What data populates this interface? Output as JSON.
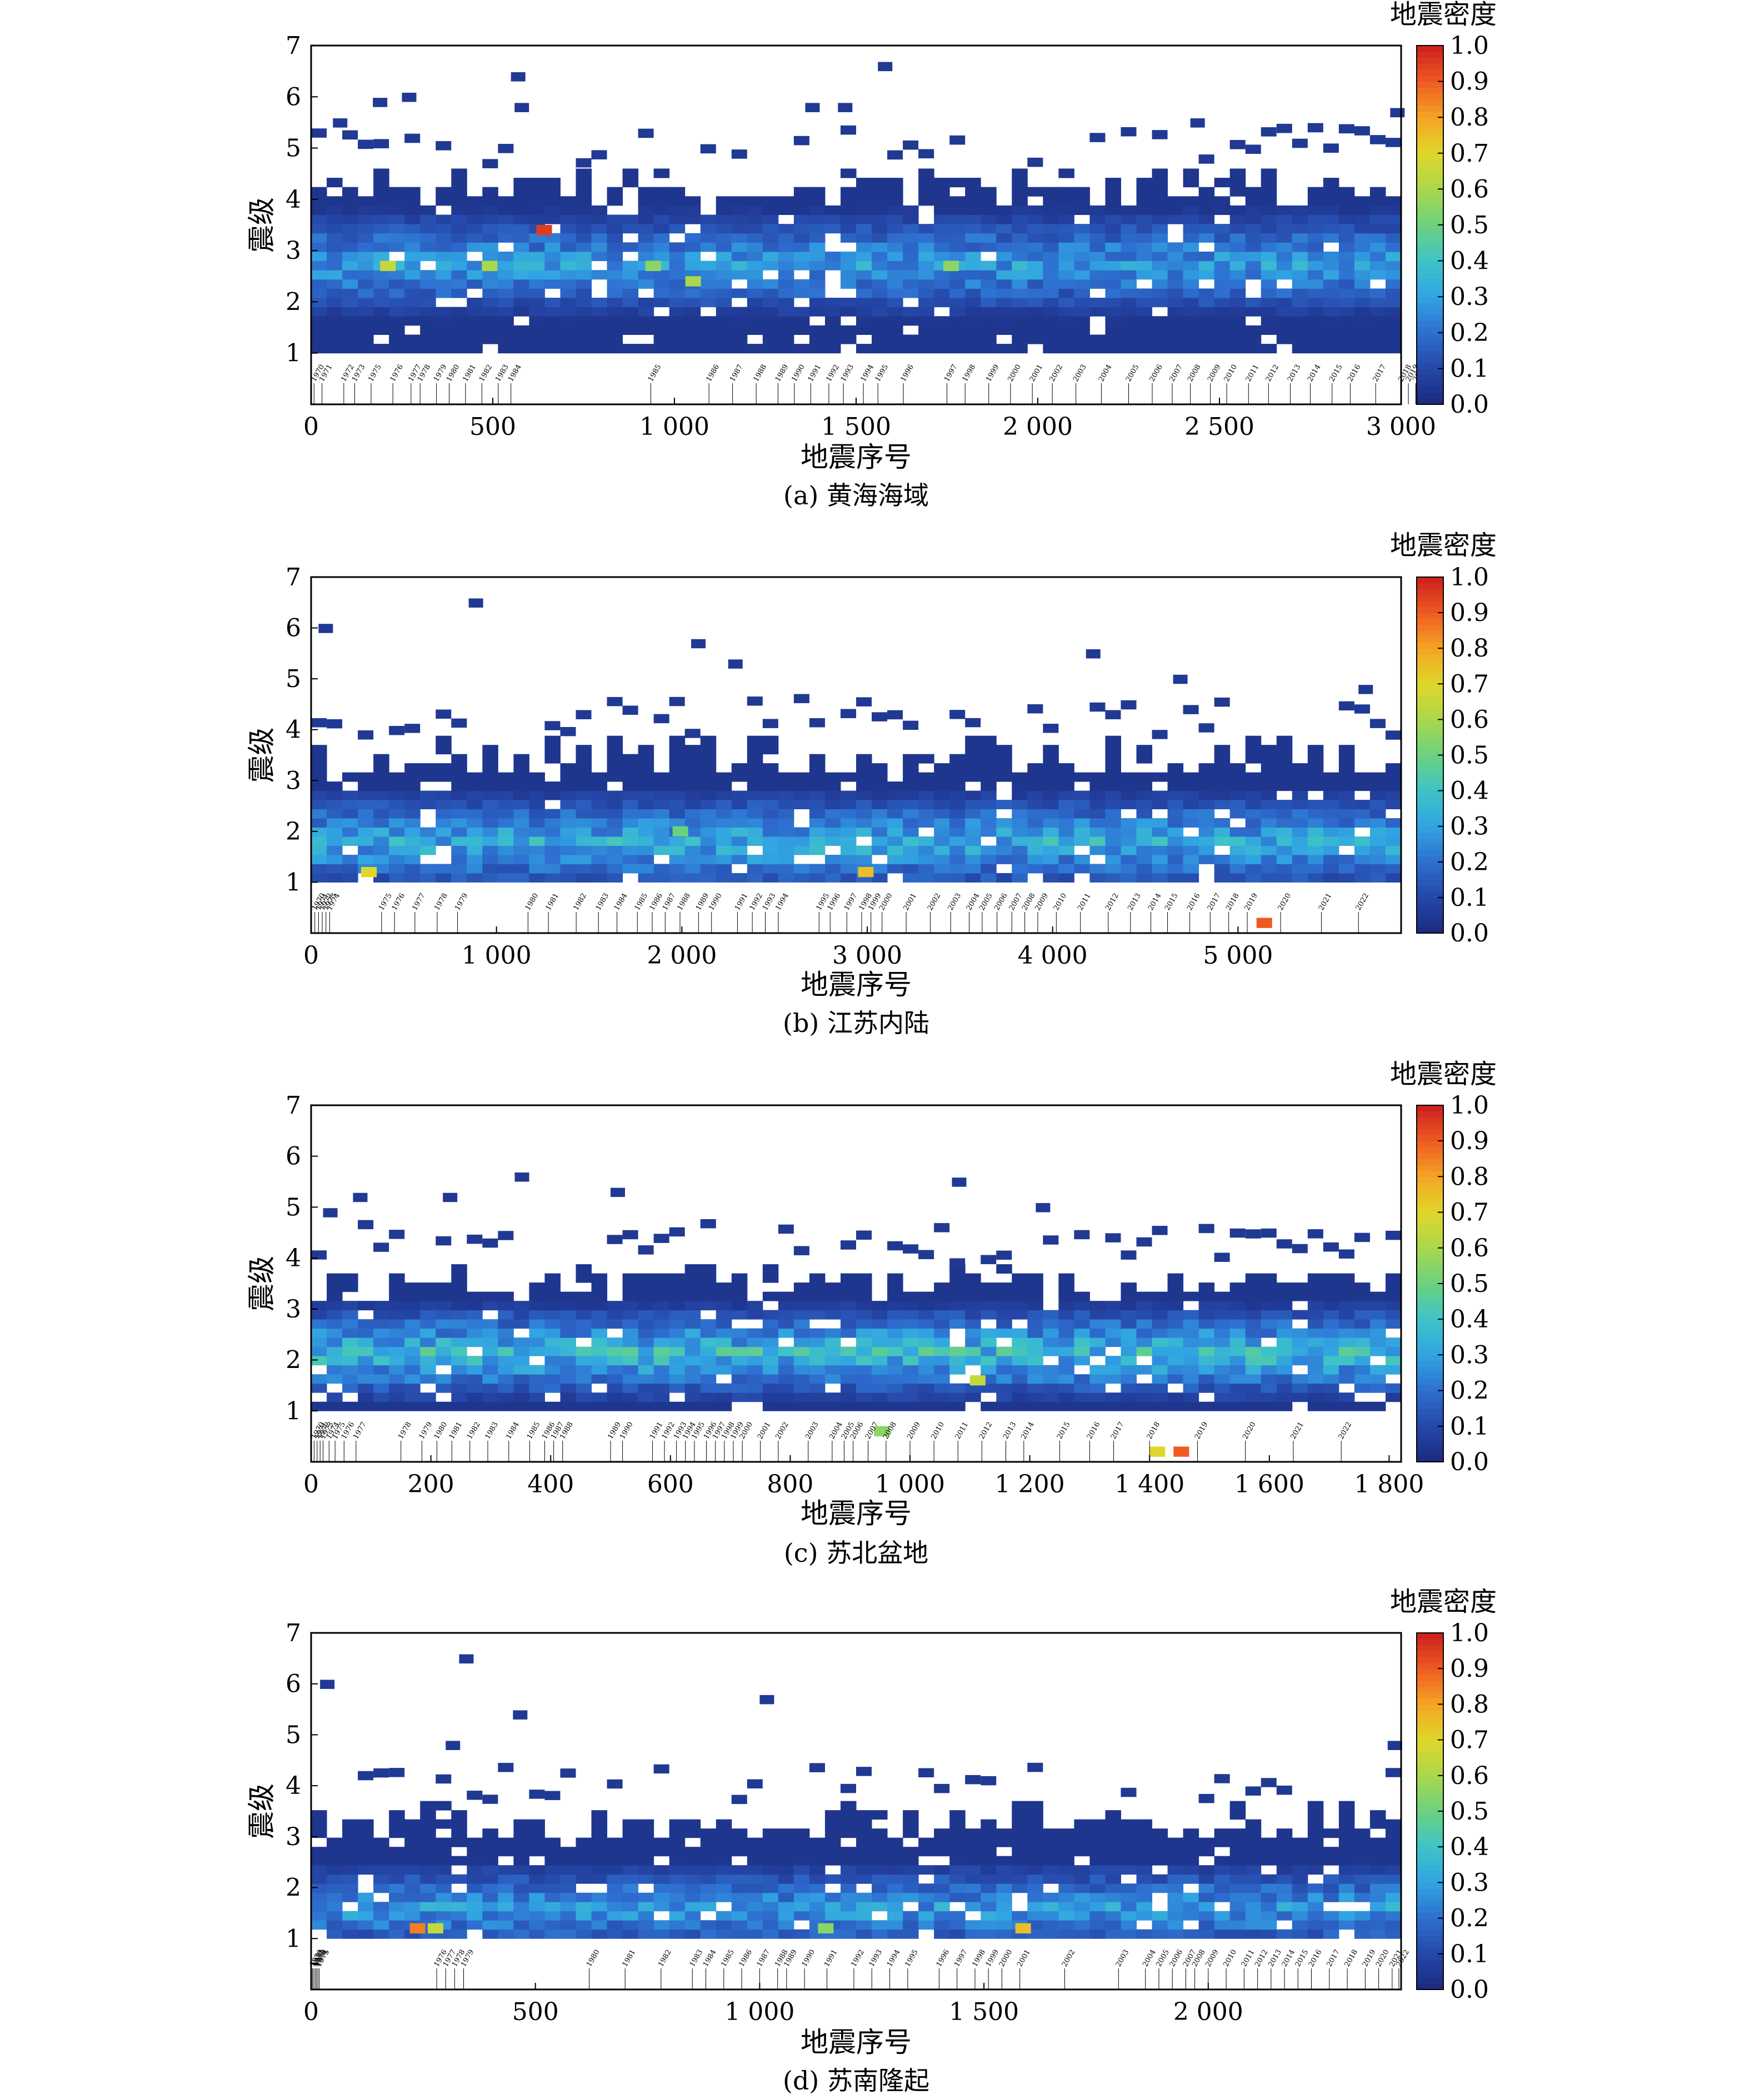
{
  "colorbar": {
    "title": "地震密度",
    "ticks": [
      0.0,
      0.1,
      0.2,
      0.3,
      0.4,
      0.5,
      0.6,
      0.7,
      0.8,
      0.9,
      1.0
    ],
    "tick_labels": [
      "0.0",
      "0.1",
      "0.2",
      "0.3",
      "0.4",
      "0.5",
      "0.6",
      "0.7",
      "0.8",
      "0.9",
      "1.0"
    ],
    "colormap": [
      "#1b2a7e",
      "#2547a8",
      "#2e6fd0",
      "#31a4e2",
      "#3ec3c7",
      "#6cd17f",
      "#a9d84a",
      "#e0d72b",
      "#f5a424",
      "#ee5a22",
      "#cc1e1e"
    ]
  },
  "chart_data": [
    {
      "type": "heatmap",
      "caption": "(a) 黄海海域",
      "xlabel": "地震序号",
      "ylabel": "震级",
      "xlim": [
        0,
        3000
      ],
      "ylim": [
        0,
        7
      ],
      "x_ticks": [
        0,
        500,
        1000,
        1500,
        2000,
        2500,
        3000
      ],
      "x_tick_labels": [
        "0",
        "500",
        "1 000",
        "1 500",
        "2 000",
        "2 500",
        "3 000"
      ],
      "y_ticks": [
        1,
        2,
        3,
        4,
        5,
        6,
        7
      ],
      "y_tick_labels": [
        "1",
        "2",
        "3",
        "4",
        "5",
        "6",
        "7"
      ],
      "dense_band": {
        "mag_range": [
          1.0,
          4.6
        ],
        "core": [
          2.0,
          3.3
        ],
        "peak_value": 0.35
      },
      "hotspots": [
        {
          "x": 190,
          "mag": 2.6,
          "value": 0.65
        },
        {
          "x": 470,
          "mag": 2.6,
          "value": 0.6
        },
        {
          "x": 620,
          "mag": 3.3,
          "value": 0.95
        },
        {
          "x": 920,
          "mag": 2.6,
          "value": 0.55
        },
        {
          "x": 1030,
          "mag": 2.3,
          "value": 0.6
        },
        {
          "x": 1740,
          "mag": 2.6,
          "value": 0.55
        }
      ],
      "outliers": [
        {
          "x": 60,
          "mag": 5.4
        },
        {
          "x": 170,
          "mag": 5.8
        },
        {
          "x": 250,
          "mag": 5.9
        },
        {
          "x": 550,
          "mag": 6.3
        },
        {
          "x": 560,
          "mag": 5.7
        },
        {
          "x": 1560,
          "mag": 6.5
        },
        {
          "x": 1450,
          "mag": 5.7
        },
        {
          "x": 1360,
          "mag": 5.7
        },
        {
          "x": 2420,
          "mag": 5.4
        },
        {
          "x": 2970,
          "mag": 5.6
        }
      ],
      "year_markers": {
        "years": [
          "1970",
          "1971",
          "1972",
          "1973",
          "1975",
          "1976",
          "1977",
          "1978",
          "1979",
          "1980",
          "1981",
          "1982",
          "1983",
          "1984",
          "1985",
          "1986",
          "1987",
          "1988",
          "1989",
          "1990",
          "1991",
          "1992",
          "1993",
          "1994",
          "1995",
          "1996",
          "1997",
          "1998",
          "1999",
          "2000",
          "2001",
          "2002",
          "2003",
          "2004",
          "2005",
          "2006",
          "2007",
          "2008",
          "2009",
          "2010",
          "2011",
          "2012",
          "2013",
          "2014",
          "2015",
          "2016",
          "2017",
          "2018",
          "2019",
          "2020",
          "2021",
          "2022"
        ],
        "x": [
          8,
          30,
          90,
          120,
          165,
          225,
          275,
          300,
          345,
          380,
          425,
          470,
          515,
          550,
          935,
          1095,
          1160,
          1225,
          1285,
          1330,
          1375,
          1425,
          1465,
          1520,
          1560,
          1630,
          1750,
          1800,
          1865,
          1925,
          1985,
          2040,
          2105,
          2175,
          2250,
          2315,
          2370,
          2420,
          2475,
          2520,
          2580,
          2635,
          2695,
          2750,
          2810,
          2860,
          2930,
          3000,
          3020,
          3040,
          3050,
          3060
        ]
      }
    },
    {
      "type": "heatmap",
      "caption": "(b) 江苏内陆",
      "xlabel": "地震序号",
      "ylabel": "震级",
      "xlim": [
        0,
        5880
      ],
      "ylim": [
        0,
        7
      ],
      "x_ticks": [
        0,
        1000,
        2000,
        3000,
        4000,
        5000
      ],
      "x_tick_labels": [
        "0",
        "1 000",
        "2 000",
        "3 000",
        "4 000",
        "5 000"
      ],
      "y_ticks": [
        1,
        2,
        3,
        4,
        5,
        6,
        7
      ],
      "y_tick_labels": [
        "1",
        "2",
        "3",
        "4",
        "5",
        "6",
        "7"
      ],
      "dense_band": {
        "mag_range": [
          1.0,
          3.8
        ],
        "core": [
          1.1,
          2.3
        ],
        "peak_value": 0.4
      },
      "hotspots": [
        {
          "x": 270,
          "mag": 1.1,
          "value": 0.7
        },
        {
          "x": 2950,
          "mag": 1.1,
          "value": 0.75
        },
        {
          "x": 5100,
          "mag": 0.1,
          "value": 0.9
        },
        {
          "x": 1950,
          "mag": 1.9,
          "value": 0.5
        }
      ],
      "outliers": [
        {
          "x": 40,
          "mag": 5.9
        },
        {
          "x": 850,
          "mag": 6.4
        },
        {
          "x": 2050,
          "mag": 5.6
        },
        {
          "x": 2250,
          "mag": 5.2
        },
        {
          "x": 4180,
          "mag": 5.4
        },
        {
          "x": 4650,
          "mag": 4.9
        },
        {
          "x": 5650,
          "mag": 4.7
        }
      ],
      "year_markers": {
        "years": [
          "1970",
          "1971",
          "1972",
          "1973",
          "1974",
          "1975",
          "1976",
          "1977",
          "1978",
          "1979",
          "1980",
          "1981",
          "1982",
          "1983",
          "1984",
          "1985",
          "1986",
          "1987",
          "1988",
          "1989",
          "1990",
          "1991",
          "1992",
          "1993",
          "1994",
          "1995",
          "1996",
          "1997",
          "1998",
          "1999",
          "2000",
          "2001",
          "2002",
          "2003",
          "2004",
          "2005",
          "2006",
          "2007",
          "2008",
          "2009",
          "2010",
          "2011",
          "2012",
          "2013",
          "2014",
          "2015",
          "2016",
          "2017",
          "2018",
          "2019",
          "2020",
          "2021",
          "2022"
        ],
        "x": [
          20,
          40,
          60,
          80,
          100,
          380,
          450,
          560,
          680,
          790,
          1170,
          1280,
          1430,
          1550,
          1650,
          1760,
          1840,
          1910,
          1990,
          2090,
          2160,
          2300,
          2380,
          2450,
          2520,
          2740,
          2800,
          2890,
          2970,
          3020,
          3080,
          3210,
          3340,
          3450,
          3550,
          3620,
          3700,
          3780,
          3850,
          3920,
          4020,
          4150,
          4300,
          4420,
          4530,
          4620,
          4740,
          4850,
          4950,
          5050,
          5230,
          5450,
          5650
        ]
      }
    },
    {
      "type": "heatmap",
      "caption": "(c) 苏北盆地",
      "xlabel": "地震序号",
      "ylabel": "震级",
      "xlim": [
        0,
        1820
      ],
      "ylim": [
        0,
        7
      ],
      "x_ticks": [
        0,
        200,
        400,
        600,
        800,
        1000,
        1200,
        1400,
        1600,
        1800
      ],
      "x_tick_labels": [
        "0",
        "200",
        "400",
        "600",
        "800",
        "1 000",
        "1 200",
        "1 400",
        "1 600",
        "1 800"
      ],
      "y_ticks": [
        1,
        2,
        3,
        4,
        5,
        6,
        7
      ],
      "y_tick_labels": [
        "1",
        "2",
        "3",
        "4",
        "5",
        "6",
        "7"
      ],
      "dense_band": {
        "mag_range": [
          1.0,
          3.8
        ],
        "core": [
          1.5,
          2.6
        ],
        "peak_value": 0.45
      },
      "hotspots": [
        {
          "x": 1100,
          "mag": 1.5,
          "value": 0.65
        },
        {
          "x": 1440,
          "mag": 0.1,
          "value": 0.9
        },
        {
          "x": 1400,
          "mag": 0.1,
          "value": 0.7
        },
        {
          "x": 940,
          "mag": 0.5,
          "value": 0.55
        }
      ],
      "outliers": [
        {
          "x": 20,
          "mag": 4.8
        },
        {
          "x": 70,
          "mag": 5.1
        },
        {
          "x": 220,
          "mag": 5.1
        },
        {
          "x": 340,
          "mag": 5.5
        },
        {
          "x": 500,
          "mag": 5.2
        },
        {
          "x": 1070,
          "mag": 5.4
        },
        {
          "x": 1210,
          "mag": 4.9
        }
      ],
      "year_markers": {
        "years": [
          "1970",
          "1971",
          "1972",
          "1973",
          "1974",
          "1975",
          "1976",
          "1977",
          "1978",
          "1979",
          "1980",
          "1981",
          "1982",
          "1983",
          "1984",
          "1985",
          "1986",
          "1987",
          "1988",
          "1989",
          "1990",
          "1991",
          "1992",
          "1993",
          "1994",
          "1995",
          "1996",
          "1997",
          "1998",
          "1999",
          "2000",
          "2001",
          "2002",
          "2003",
          "2004",
          "2005",
          "2006",
          "2007",
          "2008",
          "2009",
          "2010",
          "2011",
          "2012",
          "2013",
          "2014",
          "2015",
          "2016",
          "2017",
          "2018",
          "2019",
          "2020",
          "2021",
          "2022"
        ],
        "x": [
          5,
          10,
          15,
          20,
          30,
          40,
          55,
          75,
          150,
          185,
          210,
          235,
          265,
          295,
          330,
          365,
          390,
          405,
          420,
          500,
          520,
          570,
          590,
          610,
          625,
          640,
          660,
          675,
          690,
          705,
          720,
          750,
          780,
          830,
          870,
          890,
          905,
          930,
          960,
          1000,
          1040,
          1080,
          1120,
          1160,
          1190,
          1250,
          1300,
          1340,
          1400,
          1480,
          1560,
          1640,
          1720
        ]
      }
    },
    {
      "type": "heatmap",
      "caption": "(d) 苏南隆起",
      "xlabel": "地震序号",
      "ylabel": "震级",
      "xlim": [
        0,
        2430
      ],
      "ylim": [
        0,
        7
      ],
      "x_ticks": [
        0,
        500,
        1000,
        1500,
        2000
      ],
      "x_tick_labels": [
        "0",
        "500",
        "1 000",
        "1 500",
        "2 000"
      ],
      "y_ticks": [
        1,
        2,
        3,
        4,
        5,
        6,
        7
      ],
      "y_tick_labels": [
        "1",
        "2",
        "3",
        "4",
        "5",
        "6",
        "7"
      ],
      "dense_band": {
        "mag_range": [
          1.0,
          3.6
        ],
        "core": [
          1.0,
          2.0
        ],
        "peak_value": 0.35
      },
      "hotspots": [
        {
          "x": 220,
          "mag": 1.1,
          "value": 0.85
        },
        {
          "x": 260,
          "mag": 1.1,
          "value": 0.65
        },
        {
          "x": 1570,
          "mag": 1.1,
          "value": 0.75
        },
        {
          "x": 1130,
          "mag": 1.1,
          "value": 0.55
        }
      ],
      "outliers": [
        {
          "x": 20,
          "mag": 5.9
        },
        {
          "x": 330,
          "mag": 6.4
        },
        {
          "x": 450,
          "mag": 5.3
        },
        {
          "x": 1000,
          "mag": 5.6
        },
        {
          "x": 300,
          "mag": 4.7
        },
        {
          "x": 2400,
          "mag": 4.7
        }
      ],
      "year_markers": {
        "years": [
          "1970",
          "1971",
          "1972",
          "1973",
          "1974",
          "1975",
          "1976",
          "1977",
          "1978",
          "1979",
          "1980",
          "1981",
          "1982",
          "1983",
          "1984",
          "1985",
          "1986",
          "1987",
          "1988",
          "1989",
          "1990",
          "1991",
          "1992",
          "1993",
          "1994",
          "1995",
          "1996",
          "1997",
          "1998",
          "1999",
          "2000",
          "2001",
          "2002",
          "2003",
          "2004",
          "2005",
          "2006",
          "2007",
          "2008",
          "2009",
          "2010",
          "2011",
          "2012",
          "2013",
          "2014",
          "2015",
          "2016",
          "2017",
          "2018",
          "2019",
          "2020",
          "2021",
          "2022"
        ],
        "x": [
          3,
          6,
          9,
          12,
          15,
          18,
          280,
          300,
          320,
          340,
          620,
          700,
          780,
          850,
          880,
          920,
          960,
          1000,
          1040,
          1060,
          1100,
          1150,
          1210,
          1250,
          1290,
          1330,
          1400,
          1440,
          1480,
          1510,
          1540,
          1580,
          1680,
          1800,
          1860,
          1890,
          1920,
          1950,
          1970,
          2000,
          2040,
          2080,
          2110,
          2140,
          2170,
          2200,
          2230,
          2270,
          2310,
          2350,
          2380,
          2410,
          2425
        ]
      }
    }
  ]
}
